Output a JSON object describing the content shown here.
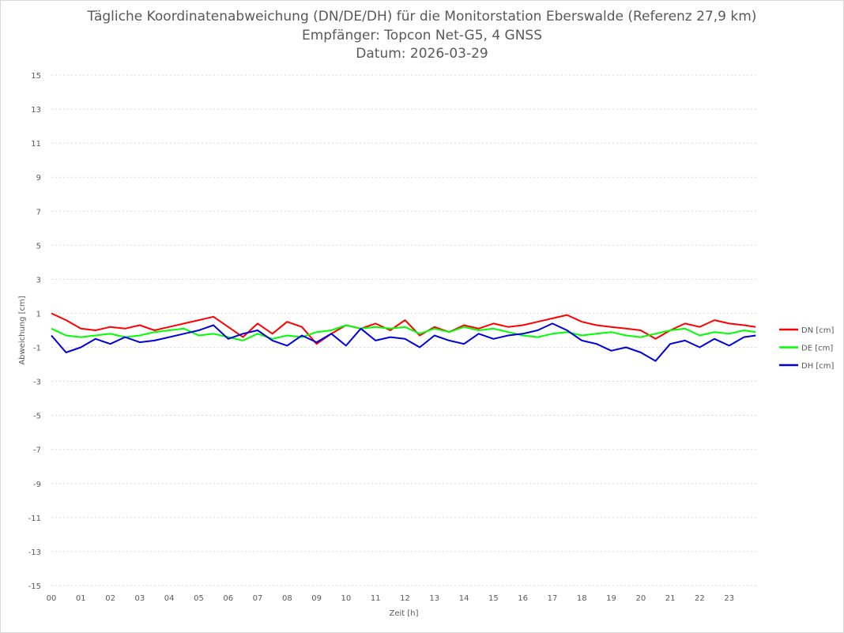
{
  "chart_data": {
    "type": "line",
    "title": [
      "Tägliche Koordinatenabweichung (DN/DE/DH) für die Monitorstation Eberswalde (Referenz 27,9 km)",
      "Empfänger: Topcon Net-G5, 4 GNSS",
      "Datum: 2026-03-29"
    ],
    "xlabel": "Zeit [h]",
    "ylabel": "Abweichung [cm]",
    "xlim": [
      0,
      24
    ],
    "ylim": [
      -15,
      15
    ],
    "yticks": [
      "15",
      "13",
      "11",
      "9",
      "7",
      "5",
      "3",
      "1",
      "-1",
      "-3",
      "-5",
      "-7",
      "-9",
      "-11",
      "-13",
      "-15"
    ],
    "xticks": [
      "00",
      "01",
      "02",
      "03",
      "04",
      "05",
      "06",
      "07",
      "08",
      "09",
      "10",
      "11",
      "12",
      "13",
      "14",
      "15",
      "16",
      "17",
      "18",
      "19",
      "20",
      "21",
      "22",
      "23"
    ],
    "grid": true,
    "legend": "right",
    "x": [
      0.0,
      0.5,
      1.0,
      1.5,
      2.0,
      2.5,
      3.0,
      3.5,
      4.0,
      4.5,
      5.0,
      5.5,
      6.0,
      6.5,
      7.0,
      7.5,
      8.0,
      8.5,
      9.0,
      9.5,
      10.0,
      10.5,
      11.0,
      11.5,
      12.0,
      12.5,
      13.0,
      13.5,
      14.0,
      14.5,
      15.0,
      15.5,
      16.0,
      16.5,
      17.0,
      17.5,
      18.0,
      18.5,
      19.0,
      19.5,
      20.0,
      20.5,
      21.0,
      21.5,
      22.0,
      22.5,
      23.0,
      23.5,
      23.9
    ],
    "series": [
      {
        "name": "DN [cm]",
        "color": "#ff0000",
        "values": [
          1.0,
          0.6,
          0.1,
          0.0,
          0.2,
          0.1,
          0.3,
          0.0,
          0.2,
          0.4,
          0.6,
          0.8,
          0.2,
          -0.4,
          0.4,
          -0.2,
          0.5,
          0.2,
          -0.8,
          -0.2,
          0.3,
          0.1,
          0.4,
          0.0,
          0.6,
          -0.3,
          0.2,
          -0.1,
          0.3,
          0.1,
          0.4,
          0.2,
          0.3,
          0.5,
          0.7,
          0.9,
          0.5,
          0.3,
          0.2,
          0.1,
          0.0,
          -0.5,
          0.0,
          0.4,
          0.2,
          0.6,
          0.4,
          0.3,
          0.2
        ]
      },
      {
        "name": "DE [cm]",
        "color": "#00ff00",
        "values": [
          0.1,
          -0.3,
          -0.4,
          -0.3,
          -0.2,
          -0.4,
          -0.3,
          -0.1,
          0.0,
          0.1,
          -0.3,
          -0.2,
          -0.4,
          -0.6,
          -0.2,
          -0.5,
          -0.3,
          -0.4,
          -0.1,
          0.0,
          0.3,
          0.1,
          0.2,
          0.1,
          0.2,
          -0.2,
          0.1,
          -0.1,
          0.2,
          0.0,
          0.1,
          -0.1,
          -0.3,
          -0.4,
          -0.2,
          -0.1,
          -0.3,
          -0.2,
          -0.1,
          -0.3,
          -0.4,
          -0.2,
          0.0,
          0.1,
          -0.3,
          -0.1,
          -0.2,
          0.0,
          -0.1
        ]
      },
      {
        "name": "DH [cm]",
        "color": "#0000dd",
        "values": [
          -0.3,
          -1.3,
          -1.0,
          -0.5,
          -0.8,
          -0.4,
          -0.7,
          -0.6,
          -0.4,
          -0.2,
          0.0,
          0.3,
          -0.5,
          -0.2,
          0.0,
          -0.6,
          -0.9,
          -0.3,
          -0.7,
          -0.2,
          -0.9,
          0.1,
          -0.6,
          -0.4,
          -0.5,
          -1.0,
          -0.3,
          -0.6,
          -0.8,
          -0.2,
          -0.5,
          -0.3,
          -0.2,
          0.0,
          0.4,
          0.0,
          -0.6,
          -0.8,
          -1.2,
          -1.0,
          -1.3,
          -1.8,
          -0.8,
          -0.6,
          -1.0,
          -0.5,
          -0.9,
          -0.4,
          -0.3
        ]
      }
    ]
  }
}
